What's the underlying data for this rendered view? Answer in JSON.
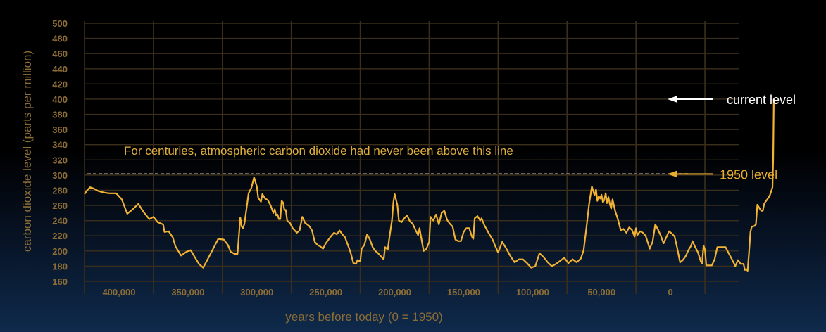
{
  "chart_data": {
    "type": "line",
    "title": "",
    "xlabel": "years before today (0 = 1950)",
    "ylabel": "carbon dioxide level (parts per million)",
    "xlim": [
      425000,
      -50000
    ],
    "ylim": [
      160,
      500
    ],
    "x_ticks": [
      400000,
      350000,
      300000,
      250000,
      200000,
      150000,
      100000,
      50000,
      0
    ],
    "x_tick_labels": [
      "400,000",
      "350,000",
      "300,000",
      "250,000",
      "200,000",
      "150,000",
      "100,000",
      "50,000",
      "0"
    ],
    "y_ticks": [
      160,
      180,
      200,
      220,
      240,
      260,
      280,
      300,
      320,
      340,
      360,
      380,
      400,
      420,
      440,
      460,
      480,
      500
    ],
    "grid": true,
    "colors": {
      "line": "#f2b233",
      "grid": "#3b2f1c",
      "tick": "#8c6d36",
      "reference": "#7a7468",
      "white_arrow": "#ffffff",
      "gold_arrow": "#e8ad2e"
    },
    "reference_line": {
      "y": 302,
      "label": "For centuries, atmospheric carbon dioxide had never been above this line"
    },
    "annotations": [
      {
        "label": "current level",
        "y": 400,
        "color": "white"
      },
      {
        "label": "1950 level",
        "y": 300,
        "color": "gold"
      }
    ],
    "series": [
      {
        "values": [
          [
            425000,
            275
          ],
          [
            423000,
            280
          ],
          [
            421000,
            284
          ],
          [
            418000,
            282
          ],
          [
            415000,
            279
          ],
          [
            411000,
            277
          ],
          [
            407000,
            276
          ],
          [
            402000,
            276
          ],
          [
            398000,
            268
          ],
          [
            394000,
            249
          ],
          [
            390000,
            255
          ],
          [
            386000,
            262
          ],
          [
            382000,
            251
          ],
          [
            378000,
            242
          ],
          [
            375000,
            245
          ],
          [
            372000,
            238
          ],
          [
            368000,
            235
          ],
          [
            367000,
            225
          ],
          [
            364000,
            226
          ],
          [
            361000,
            218
          ],
          [
            359000,
            206
          ],
          [
            355000,
            194
          ],
          [
            351000,
            199
          ],
          [
            348000,
            201
          ],
          [
            345000,
            192
          ],
          [
            342000,
            183
          ],
          [
            339000,
            178
          ],
          [
            336000,
            188
          ],
          [
            332000,
            202
          ],
          [
            328000,
            216
          ],
          [
            324000,
            215
          ],
          [
            321000,
            208
          ],
          [
            319000,
            199
          ],
          [
            316000,
            196
          ],
          [
            314000,
            196
          ],
          [
            312000,
            244
          ],
          [
            311000,
            232
          ],
          [
            310000,
            230
          ],
          [
            309000,
            236
          ],
          [
            307000,
            262
          ],
          [
            306000,
            276
          ],
          [
            304000,
            283
          ],
          [
            302000,
            297
          ],
          [
            300000,
            285
          ],
          [
            299000,
            270
          ],
          [
            297000,
            265
          ],
          [
            296000,
            275
          ],
          [
            294000,
            269
          ],
          [
            292000,
            267
          ],
          [
            290000,
            260
          ],
          [
            288000,
            250
          ],
          [
            287000,
            255
          ],
          [
            286000,
            247
          ],
          [
            285000,
            248
          ],
          [
            284000,
            242
          ],
          [
            283000,
            242
          ],
          [
            282000,
            266
          ],
          [
            281000,
            264
          ],
          [
            280000,
            254
          ],
          [
            279000,
            254
          ],
          [
            278000,
            240
          ],
          [
            276000,
            237
          ],
          [
            274000,
            230
          ],
          [
            271000,
            224
          ],
          [
            269000,
            227
          ],
          [
            267000,
            245
          ],
          [
            265000,
            237
          ],
          [
            262000,
            233
          ],
          [
            260000,
            227
          ],
          [
            258000,
            212
          ],
          [
            256000,
            208
          ],
          [
            254000,
            206
          ],
          [
            252000,
            203
          ],
          [
            250000,
            210
          ],
          [
            248000,
            215
          ],
          [
            246000,
            220
          ],
          [
            244000,
            224
          ],
          [
            242000,
            222
          ],
          [
            240000,
            227
          ],
          [
            238000,
            222
          ],
          [
            236000,
            218
          ],
          [
            234000,
            208
          ],
          [
            232000,
            198
          ],
          [
            230000,
            184
          ],
          [
            228000,
            183
          ],
          [
            227000,
            188
          ],
          [
            225000,
            186
          ],
          [
            224000,
            203
          ],
          [
            222000,
            208
          ],
          [
            220000,
            222
          ],
          [
            218000,
            215
          ],
          [
            216000,
            205
          ],
          [
            214000,
            200
          ],
          [
            212000,
            197
          ],
          [
            210000,
            193
          ],
          [
            208000,
            189
          ],
          [
            207000,
            205
          ],
          [
            205000,
            202
          ],
          [
            204000,
            216
          ],
          [
            202000,
            240
          ],
          [
            201000,
            264
          ],
          [
            200000,
            275
          ],
          [
            198000,
            260
          ],
          [
            197000,
            240
          ],
          [
            195000,
            238
          ],
          [
            193000,
            243
          ],
          [
            191000,
            247
          ],
          [
            189000,
            239
          ],
          [
            187000,
            236
          ],
          [
            185000,
            228
          ],
          [
            183000,
            221
          ],
          [
            182000,
            230
          ],
          [
            181000,
            220
          ],
          [
            179000,
            200
          ],
          [
            177000,
            203
          ],
          [
            175000,
            212
          ],
          [
            174000,
            245
          ],
          [
            172000,
            240
          ],
          [
            170000,
            248
          ],
          [
            168000,
            235
          ],
          [
            166000,
            250
          ],
          [
            164000,
            253
          ],
          [
            162000,
            241
          ],
          [
            160000,
            236
          ],
          [
            158000,
            232
          ],
          [
            156000,
            215
          ],
          [
            154000,
            213
          ],
          [
            152000,
            213
          ],
          [
            150000,
            225
          ],
          [
            148000,
            230
          ],
          [
            146000,
            230
          ],
          [
            144000,
            219
          ],
          [
            143000,
            216
          ],
          [
            142000,
            243
          ],
          [
            140000,
            246
          ],
          [
            138000,
            240
          ],
          [
            137000,
            243
          ],
          [
            135000,
            234
          ],
          [
            132000,
            224
          ],
          [
            129000,
            215
          ],
          [
            127000,
            206
          ],
          [
            125000,
            198
          ],
          [
            122000,
            212
          ],
          [
            119000,
            203
          ],
          [
            116000,
            193
          ],
          [
            113000,
            185
          ],
          [
            110000,
            189
          ],
          [
            107000,
            189
          ],
          [
            104000,
            184
          ],
          [
            101000,
            178
          ],
          [
            98000,
            180
          ],
          [
            95000,
            197
          ],
          [
            92000,
            192
          ],
          [
            89000,
            185
          ],
          [
            86000,
            180
          ],
          [
            83000,
            183
          ],
          [
            80000,
            187
          ],
          [
            77000,
            191
          ],
          [
            74000,
            184
          ],
          [
            71000,
            189
          ],
          [
            68000,
            185
          ],
          [
            65000,
            190
          ],
          [
            63000,
            201
          ],
          [
            61000,
            230
          ],
          [
            59000,
            262
          ],
          [
            57000,
            285
          ],
          [
            55000,
            273
          ],
          [
            54000,
            281
          ],
          [
            53000,
            266
          ],
          [
            52000,
            272
          ],
          [
            51000,
            269
          ],
          [
            50000,
            274
          ],
          [
            49000,
            264
          ],
          [
            48000,
            267
          ],
          [
            47000,
            276
          ],
          [
            46000,
            263
          ],
          [
            45000,
            271
          ],
          [
            44000,
            262
          ],
          [
            43000,
            256
          ],
          [
            42000,
            268
          ],
          [
            40000,
            252
          ],
          [
            39000,
            247
          ],
          [
            38000,
            241
          ],
          [
            36000,
            227
          ],
          [
            34000,
            229
          ],
          [
            32000,
            224
          ],
          [
            30000,
            231
          ],
          [
            28000,
            228
          ],
          [
            26000,
            219
          ],
          [
            25000,
            230
          ],
          [
            24000,
            221
          ],
          [
            22000,
            226
          ],
          [
            20000,
            224
          ],
          [
            18000,
            220
          ],
          [
            15000,
            203
          ],
          [
            13000,
            212
          ],
          [
            11000,
            235
          ],
          [
            9000,
            228
          ],
          [
            7000,
            220
          ],
          [
            5000,
            210
          ],
          [
            3000,
            218
          ],
          [
            1000,
            226
          ],
          [
            -1000,
            223
          ],
          [
            -3000,
            219
          ],
          [
            -5000,
            203
          ],
          [
            -7000,
            185
          ],
          [
            -9000,
            188
          ],
          [
            -11000,
            193
          ],
          [
            -13000,
            201
          ],
          [
            -15000,
            207
          ],
          [
            -16000,
            213
          ],
          [
            -18000,
            205
          ],
          [
            -20000,
            198
          ],
          [
            -22000,
            186
          ],
          [
            -23000,
            184
          ],
          [
            -24000,
            207
          ],
          [
            -25000,
            202
          ],
          [
            -26000,
            181
          ],
          [
            -28000,
            181
          ],
          [
            -30000,
            181
          ],
          [
            -32000,
            189
          ],
          [
            -34000,
            205
          ],
          [
            -36000,
            205
          ],
          [
            -38000,
            205
          ],
          [
            -40000,
            205
          ],
          [
            -42000,
            198
          ],
          [
            -44000,
            191
          ],
          [
            -46000,
            184
          ],
          [
            -47000,
            180
          ],
          [
            -49000,
            188
          ],
          [
            -51000,
            183
          ],
          [
            -53000,
            183
          ],
          [
            -54000,
            175
          ],
          [
            -55000,
            176
          ],
          [
            -56000,
            174
          ],
          [
            -57000,
            198
          ],
          [
            -58000,
            225
          ],
          [
            -59000,
            232
          ],
          [
            -61000,
            233
          ],
          [
            -62000,
            235
          ],
          [
            -63000,
            261
          ],
          [
            -64000,
            258
          ],
          [
            -65000,
            255
          ],
          [
            -66000,
            253
          ],
          [
            -67000,
            253
          ],
          [
            -68000,
            262
          ],
          [
            -69000,
            265
          ],
          [
            -71000,
            270
          ],
          [
            -72000,
            273
          ],
          [
            -73000,
            278
          ],
          [
            -74000,
            284
          ],
          [
            -74500,
            320
          ],
          [
            -75000,
            400
          ]
        ]
      }
    ]
  }
}
